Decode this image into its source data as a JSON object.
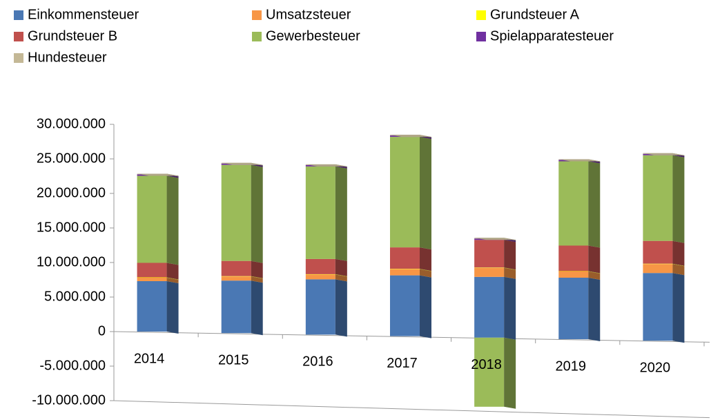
{
  "chart_data": {
    "type": "bar",
    "stacked": true,
    "categories": [
      "2014",
      "2015",
      "2016",
      "2017",
      "2018",
      "2019",
      "2020"
    ],
    "series": [
      {
        "name": "Einkommensteuer",
        "color": "#4a78b4",
        "values": [
          7300000,
          7600000,
          8000000,
          8800000,
          8800000,
          8900000,
          9800000
        ]
      },
      {
        "name": "Umsatzsteuer",
        "color": "#f79646",
        "values": [
          500000,
          600000,
          700000,
          900000,
          1300000,
          900000,
          1300000
        ]
      },
      {
        "name": "Grundsteuer A",
        "color": "#ffff00",
        "values": [
          50000,
          50000,
          50000,
          50000,
          50000,
          50000,
          50000
        ]
      },
      {
        "name": "Grundsteuer B",
        "color": "#c0504d",
        "values": [
          2100000,
          2200000,
          2200000,
          3100000,
          4000000,
          3700000,
          3300000
        ]
      },
      {
        "name": "Gewerbesteuer",
        "color": "#9bbb59",
        "values": [
          12600000,
          13900000,
          13400000,
          16000000,
          -10000000,
          12200000,
          12400000
        ]
      },
      {
        "name": "Spielapparatesteuer",
        "color": "#7030a0",
        "values": [
          200000,
          200000,
          200000,
          200000,
          200000,
          200000,
          200000
        ]
      },
      {
        "name": "Hundesteuer",
        "color": "#c4b896",
        "values": [
          100000,
          100000,
          100000,
          100000,
          100000,
          100000,
          100000
        ]
      }
    ],
    "ylim": [
      -10000000,
      30000000
    ],
    "yticks": [
      {
        "value": -10000000,
        "label": "-10.000.000"
      },
      {
        "value": -5000000,
        "label": "-5.000.000"
      },
      0,
      {
        "value": 5000000,
        "label": "5.000.000"
      },
      {
        "value": 10000000,
        "label": "10.000.000"
      },
      {
        "value": 15000000,
        "label": "15.000.000"
      },
      {
        "value": 20000000,
        "label": "20.000.000"
      },
      {
        "value": 25000000,
        "label": "25.000.000"
      },
      {
        "value": 30000000,
        "label": "30.000.000"
      }
    ],
    "legend": "top"
  }
}
